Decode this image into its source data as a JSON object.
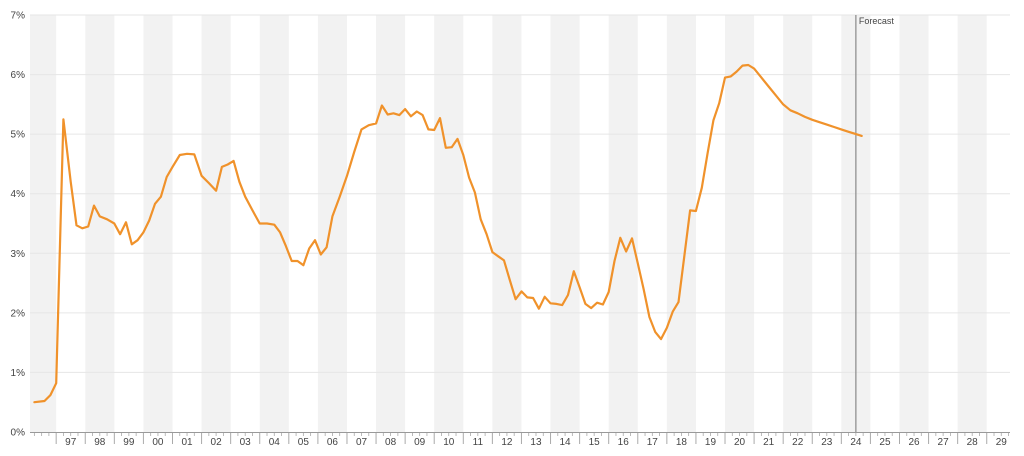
{
  "chart_data": {
    "type": "line",
    "title": "",
    "xlabel": "",
    "ylabel": "",
    "ylim": [
      0,
      7
    ],
    "xlim": [
      1996.1,
      2029.8
    ],
    "grid": true,
    "y_ticks": [
      "0%",
      "1%",
      "2%",
      "3%",
      "4%",
      "5%",
      "6%",
      "7%"
    ],
    "x_ticks": [
      "97",
      "98",
      "99",
      "00",
      "01",
      "02",
      "03",
      "04",
      "05",
      "06",
      "07",
      "08",
      "09",
      "10",
      "11",
      "12",
      "13",
      "14",
      "15",
      "16",
      "17",
      "18",
      "19",
      "20",
      "21",
      "22",
      "23",
      "24",
      "25",
      "26",
      "27",
      "28",
      "29"
    ],
    "forecast": {
      "label": "Forecast",
      "x": 2024.5
    },
    "series": [
      {
        "color": "#f0922b",
        "points": [
          [
            1996.25,
            0.5
          ],
          [
            1996.6,
            0.52
          ],
          [
            1996.8,
            0.62
          ],
          [
            1997.0,
            0.82
          ],
          [
            1997.25,
            5.25
          ],
          [
            1997.5,
            4.2
          ],
          [
            1997.7,
            3.47
          ],
          [
            1997.9,
            3.42
          ],
          [
            1998.1,
            3.45
          ],
          [
            1998.3,
            3.8
          ],
          [
            1998.5,
            3.62
          ],
          [
            1998.75,
            3.57
          ],
          [
            1999.0,
            3.5
          ],
          [
            1999.2,
            3.32
          ],
          [
            1999.4,
            3.52
          ],
          [
            1999.6,
            3.15
          ],
          [
            1999.8,
            3.22
          ],
          [
            2000.0,
            3.35
          ],
          [
            2000.2,
            3.55
          ],
          [
            2000.4,
            3.83
          ],
          [
            2000.6,
            3.95
          ],
          [
            2000.8,
            4.28
          ],
          [
            2001.0,
            4.45
          ],
          [
            2001.25,
            4.65
          ],
          [
            2001.5,
            4.67
          ],
          [
            2001.75,
            4.66
          ],
          [
            2002.0,
            4.3
          ],
          [
            2002.25,
            4.18
          ],
          [
            2002.5,
            4.05
          ],
          [
            2002.7,
            4.45
          ],
          [
            2002.9,
            4.49
          ],
          [
            2003.1,
            4.55
          ],
          [
            2003.3,
            4.2
          ],
          [
            2003.5,
            3.95
          ],
          [
            2003.75,
            3.72
          ],
          [
            2004.0,
            3.5
          ],
          [
            2004.25,
            3.5
          ],
          [
            2004.5,
            3.48
          ],
          [
            2004.7,
            3.35
          ],
          [
            2004.9,
            3.12
          ],
          [
            2005.1,
            2.87
          ],
          [
            2005.3,
            2.87
          ],
          [
            2005.5,
            2.8
          ],
          [
            2005.7,
            3.08
          ],
          [
            2005.9,
            3.22
          ],
          [
            2006.1,
            2.98
          ],
          [
            2006.3,
            3.1
          ],
          [
            2006.5,
            3.62
          ],
          [
            2006.75,
            3.95
          ],
          [
            2007.0,
            4.3
          ],
          [
            2007.25,
            4.7
          ],
          [
            2007.5,
            5.08
          ],
          [
            2007.75,
            5.15
          ],
          [
            2008.0,
            5.18
          ],
          [
            2008.2,
            5.48
          ],
          [
            2008.4,
            5.33
          ],
          [
            2008.6,
            5.35
          ],
          [
            2008.8,
            5.32
          ],
          [
            2009.0,
            5.42
          ],
          [
            2009.2,
            5.3
          ],
          [
            2009.4,
            5.38
          ],
          [
            2009.6,
            5.32
          ],
          [
            2009.8,
            5.08
          ],
          [
            2010.0,
            5.07
          ],
          [
            2010.2,
            5.27
          ],
          [
            2010.4,
            4.77
          ],
          [
            2010.6,
            4.78
          ],
          [
            2010.8,
            4.92
          ],
          [
            2011.0,
            4.65
          ],
          [
            2011.2,
            4.27
          ],
          [
            2011.4,
            4.02
          ],
          [
            2011.6,
            3.57
          ],
          [
            2011.8,
            3.32
          ],
          [
            2012.0,
            3.02
          ],
          [
            2012.2,
            2.95
          ],
          [
            2012.4,
            2.88
          ],
          [
            2012.6,
            2.55
          ],
          [
            2012.8,
            2.23
          ],
          [
            2013.0,
            2.36
          ],
          [
            2013.2,
            2.26
          ],
          [
            2013.4,
            2.25
          ],
          [
            2013.6,
            2.07
          ],
          [
            2013.8,
            2.27
          ],
          [
            2014.0,
            2.16
          ],
          [
            2014.2,
            2.15
          ],
          [
            2014.4,
            2.13
          ],
          [
            2014.6,
            2.3
          ],
          [
            2014.8,
            2.7
          ],
          [
            2015.0,
            2.43
          ],
          [
            2015.2,
            2.15
          ],
          [
            2015.4,
            2.08
          ],
          [
            2015.6,
            2.17
          ],
          [
            2015.8,
            2.14
          ],
          [
            2016.0,
            2.35
          ],
          [
            2016.2,
            2.87
          ],
          [
            2016.4,
            3.26
          ],
          [
            2016.6,
            3.03
          ],
          [
            2016.8,
            3.25
          ],
          [
            2017.0,
            2.83
          ],
          [
            2017.2,
            2.4
          ],
          [
            2017.4,
            1.93
          ],
          [
            2017.6,
            1.68
          ],
          [
            2017.8,
            1.56
          ],
          [
            2018.0,
            1.75
          ],
          [
            2018.2,
            2.02
          ],
          [
            2018.4,
            2.18
          ],
          [
            2018.6,
            2.95
          ],
          [
            2018.8,
            3.72
          ],
          [
            2019.0,
            3.71
          ],
          [
            2019.2,
            4.1
          ],
          [
            2019.4,
            4.68
          ],
          [
            2019.6,
            5.23
          ],
          [
            2019.8,
            5.52
          ],
          [
            2020.0,
            5.95
          ],
          [
            2020.2,
            5.97
          ],
          [
            2020.4,
            6.05
          ],
          [
            2020.6,
            6.15
          ],
          [
            2020.8,
            6.16
          ],
          [
            2021.0,
            6.1
          ],
          [
            2021.25,
            5.95
          ],
          [
            2021.5,
            5.8
          ],
          [
            2021.75,
            5.65
          ],
          [
            2022.0,
            5.5
          ],
          [
            2022.25,
            5.4
          ],
          [
            2022.5,
            5.35
          ],
          [
            2022.75,
            5.29
          ],
          [
            2023.0,
            5.24
          ],
          [
            2023.25,
            5.2
          ],
          [
            2023.5,
            5.16
          ],
          [
            2023.75,
            5.12
          ],
          [
            2024.0,
            5.08
          ],
          [
            2024.25,
            5.04
          ],
          [
            2024.5,
            5.0
          ],
          [
            2024.7,
            4.97
          ]
        ]
      }
    ]
  }
}
